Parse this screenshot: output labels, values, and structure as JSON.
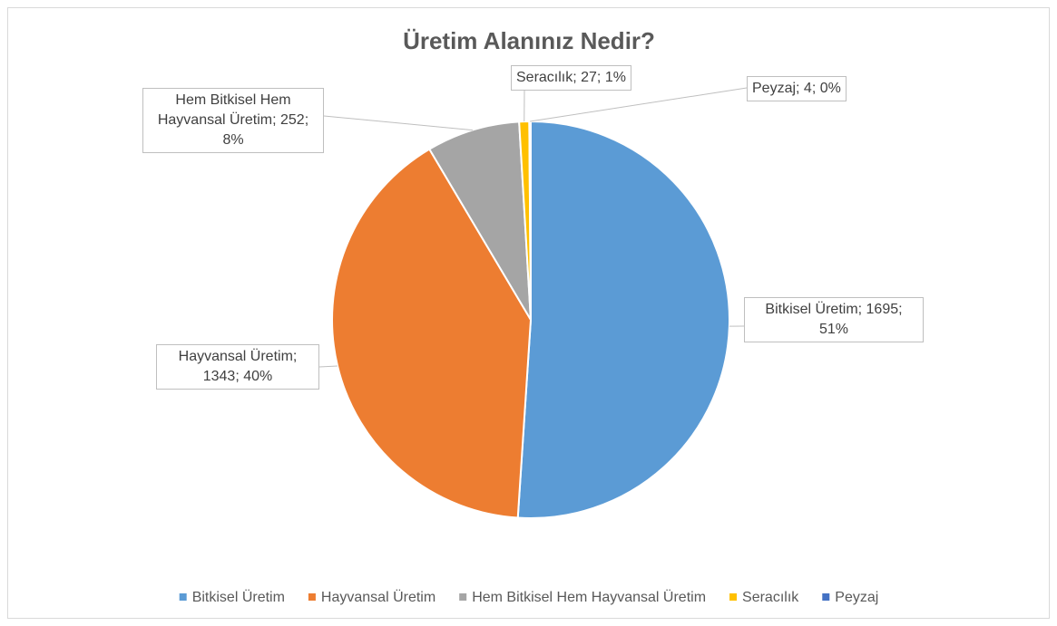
{
  "chart_data": {
    "type": "pie",
    "title": "Üretim Alanınız Nedir?",
    "categories": [
      "Bitkisel Üretim",
      "Hayvansal Üretim",
      "Hem Bitkisel Hem Hayvansal Üretim",
      "Seracılık",
      "Peyzaj"
    ],
    "values": [
      1695,
      1343,
      252,
      27,
      4
    ],
    "value_labels": [
      "Bitkisel Üretim; 1695; 51%",
      "Hayvansal Üretim; 1343; 40%",
      "Hem Bitkisel Hem Hayvansal Üretim; 252; 8%",
      "Seracılık; 27; 1%",
      "Peyzaj; 4; 0%"
    ],
    "colors": [
      "#5b9bd5",
      "#ed7d31",
      "#a5a5a5",
      "#ffc000",
      "#4472c4"
    ],
    "legend": "bottom"
  }
}
